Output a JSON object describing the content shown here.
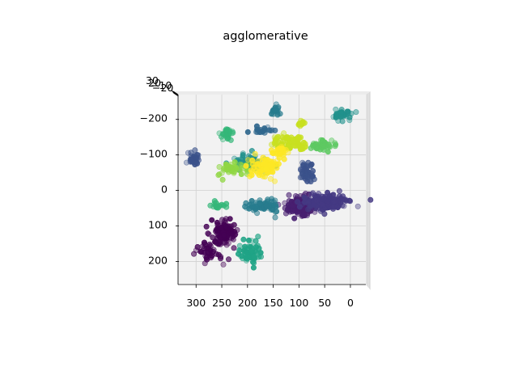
{
  "chart_data": {
    "type": "scatter",
    "projection": "3d",
    "view": "top-down",
    "title": "agglomerative",
    "xlabel": "",
    "ylabel": "",
    "zlabel": "",
    "xlim": [
      -30,
      335
    ],
    "ylim": [
      -270,
      265
    ],
    "zlim": [
      -20,
      30
    ],
    "x_ticks": [
      300,
      250,
      200,
      150,
      100,
      50,
      0
    ],
    "y_ticks": [
      -200,
      -100,
      0,
      100,
      200
    ],
    "z_tick_labels": [
      "30",
      "20",
      "-10",
      "-20"
    ],
    "x_direction": "decreasing-right",
    "y_direction": "increasing-down",
    "grid": true,
    "colormap": "viridis",
    "legend": "none",
    "clusters": [
      {
        "label": 0,
        "color": "#440154",
        "center": [
          245,
          120
        ],
        "spread": [
          22,
          30
        ],
        "n": 120
      },
      {
        "label": 0,
        "color": "#440154",
        "center": [
          275,
          175
        ],
        "spread": [
          20,
          30
        ],
        "n": 40
      },
      {
        "label": 1,
        "color": "#481f70",
        "center": [
          95,
          45
        ],
        "spread": [
          25,
          22
        ],
        "n": 200
      },
      {
        "label": 2,
        "color": "#443983",
        "center": [
          45,
          35
        ],
        "spread": [
          38,
          18
        ],
        "n": 220
      },
      {
        "label": 3,
        "color": "#3b528b",
        "center": [
          305,
          -90
        ],
        "spread": [
          16,
          15
        ],
        "n": 35
      },
      {
        "label": 3,
        "color": "#3b528b",
        "center": [
          85,
          -50
        ],
        "spread": [
          12,
          28
        ],
        "n": 50
      },
      {
        "label": 4,
        "color": "#31688e",
        "center": [
          170,
          -170
        ],
        "spread": [
          25,
          10
        ],
        "n": 25
      },
      {
        "label": 5,
        "color": "#287c8e",
        "center": [
          145,
          -225
        ],
        "spread": [
          10,
          10
        ],
        "n": 20
      },
      {
        "label": 5,
        "color": "#287c8e",
        "center": [
          170,
          45
        ],
        "spread": [
          28,
          16
        ],
        "n": 70
      },
      {
        "label": 6,
        "color": "#21918c",
        "center": [
          15,
          -215
        ],
        "spread": [
          15,
          14
        ],
        "n": 35
      },
      {
        "label": 6,
        "color": "#21918c",
        "center": [
          200,
          -80
        ],
        "spread": [
          30,
          22
        ],
        "n": 60
      },
      {
        "label": 7,
        "color": "#20a486",
        "center": [
          195,
          175
        ],
        "spread": [
          22,
          28
        ],
        "n": 70
      },
      {
        "label": 8,
        "color": "#35b779",
        "center": [
          240,
          -160
        ],
        "spread": [
          13,
          15
        ],
        "n": 30
      },
      {
        "label": 8,
        "color": "#35b779",
        "center": [
          262,
          40
        ],
        "spread": [
          16,
          14
        ],
        "n": 20
      },
      {
        "label": 9,
        "color": "#5ec962",
        "center": [
          55,
          -125
        ],
        "spread": [
          18,
          12
        ],
        "n": 45
      },
      {
        "label": 10,
        "color": "#90d743",
        "center": [
          230,
          -60
        ],
        "spread": [
          25,
          16
        ],
        "n": 50
      },
      {
        "label": 11,
        "color": "#c8e020",
        "center": [
          120,
          -135
        ],
        "spread": [
          32,
          18
        ],
        "n": 80
      },
      {
        "label": 11,
        "color": "#c8e020",
        "center": [
          95,
          -190
        ],
        "spread": [
          7,
          7
        ],
        "n": 12
      },
      {
        "label": 12,
        "color": "#fde725",
        "center": [
          165,
          -70
        ],
        "spread": [
          22,
          28
        ],
        "n": 90
      },
      {
        "label": 12,
        "color": "#fde725",
        "center": [
          135,
          -110
        ],
        "spread": [
          15,
          15
        ],
        "n": 30
      }
    ]
  }
}
